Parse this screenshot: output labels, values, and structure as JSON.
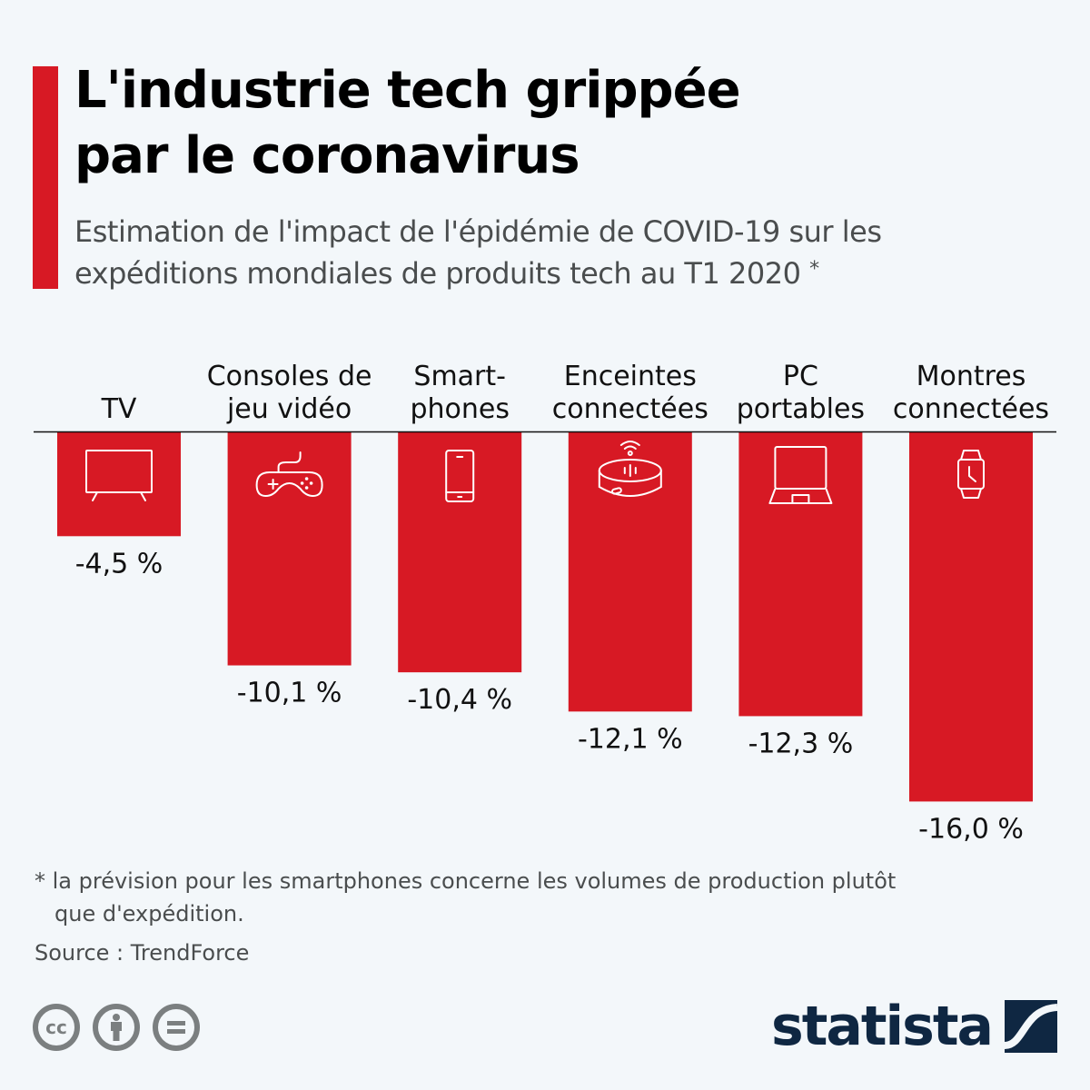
{
  "header": {
    "title_line1": "L'industrie tech grippée",
    "title_line2": "par le coronavirus",
    "subtitle_line1": "Estimation de l'impact de l'épidémie de COVID-19 sur les",
    "subtitle_line2": "expéditions mondiales de produits tech au T1 2020",
    "subtitle_marker": "*"
  },
  "colors": {
    "bar": "#d71924",
    "accent": "#d71924",
    "background": "#f3f7fa",
    "logo": "#0f2742"
  },
  "chart_data": {
    "type": "bar",
    "orientation": "vertical, negative values hanging from baseline",
    "categories": [
      [
        "TV"
      ],
      [
        "Consoles de",
        "jeu vidéo"
      ],
      [
        "Smart-",
        "phones"
      ],
      [
        "Enceintes",
        "connectées"
      ],
      [
        "PC",
        "portables"
      ],
      [
        "Montres",
        "connectées"
      ]
    ],
    "category_icons": [
      "tv-icon",
      "gamepad-icon",
      "smartphone-icon",
      "smart-speaker-icon",
      "laptop-icon",
      "smartwatch-icon"
    ],
    "values": [
      -4.5,
      -10.1,
      -10.4,
      -12.1,
      -12.3,
      -16.0
    ],
    "value_labels": [
      "-4,5 %",
      "-10,1 %",
      "-10,4 %",
      "-12,1 %",
      "-12,3 %",
      "-16,0 %"
    ],
    "ylim": [
      -16.0,
      0
    ],
    "unit": "%",
    "grid": false,
    "legend": "none",
    "title": "L'industrie tech grippée par le coronavirus",
    "xlabel": "",
    "ylabel": ""
  },
  "footer": {
    "footnote_line1": "* la prévision pour les smartphones concerne les volumes de production plutôt",
    "footnote_line2": "que d'expédition.",
    "source": "Source : TrendForce",
    "license_icons": [
      "cc-icon",
      "by-icon",
      "nd-icon"
    ],
    "cc_text": "cc",
    "logo_text": "statista"
  }
}
